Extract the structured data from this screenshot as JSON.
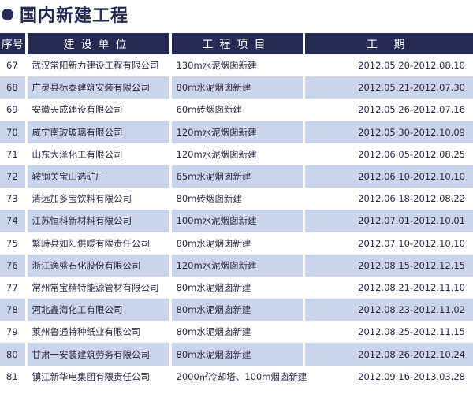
{
  "title": "国内新建工程",
  "colors": {
    "header_bg": "#262a55",
    "alt_row_bg": "#c8d5ea"
  },
  "table": {
    "headers": [
      "序号",
      "建设单位",
      "工程项目",
      "工 期"
    ],
    "rows": [
      [
        "67",
        "武汉常阳新力建设工程有限公司",
        "130m水泥烟囱新建",
        "2012.05.20-2012.08.10"
      ],
      [
        "68",
        "广灵县标泰建筑安装有限公司",
        "80m水泥烟囱新建",
        "2012.05.21-2012.07.30"
      ],
      [
        "69",
        "安徽天成建设有限公司",
        "60m砖烟囱新建",
        "2012.05.26-2012.07.16"
      ],
      [
        "70",
        "咸宁南玻玻璃有限公司",
        "120m水泥烟囱新建",
        "2012.05.30-2012.10.09"
      ],
      [
        "71",
        "山东大泽化工有限公司",
        "120m水泥烟囱新建",
        "2012.06.05-2012.08.25"
      ],
      [
        "72",
        "鞍钢关宝山选矿厂",
        "65m水泥烟囱新建",
        "2012.06.10-2012.10.10"
      ],
      [
        "73",
        "清远加多宝饮料有限公司",
        "80m砖烟囱新建",
        "2012.06.18-2012.08.22"
      ],
      [
        "74",
        "江苏恒科新材料有限公司",
        "100m水泥烟囱新建",
        "2012.07.01-2012.10.01"
      ],
      [
        "75",
        "繁峙县如阳供暖有限责任公司",
        "80m水泥烟囱新建",
        "2012.07.10-2012.10.10"
      ],
      [
        "76",
        "浙江逸盛石化股份有限公司",
        "120m水泥烟囱新建",
        "2012.08.15-2012.12.15"
      ],
      [
        "77",
        "常州常宝精特能源管材有限公司",
        "80m水泥烟囱新建",
        "2012.08.21-2012.11.10"
      ],
      [
        "78",
        "河北鑫海化工有限公司",
        "80m水泥烟囱新建",
        "2012.08.23-2012.11.02"
      ],
      [
        "79",
        "莱州鲁通特种纸业有限公司",
        "80m水泥烟囱新建",
        "2012.08.25-2012.11.15"
      ],
      [
        "80",
        "甘肃一安装建筑劳务有限公司",
        "80m水泥烟囱新建",
        "2012.08.26-2012.10.24"
      ],
      [
        "81",
        "镇江新华电集团有限责任公司",
        "2000㎡冷却塔、100m烟囱新建",
        "2012.09.16-2013.03.28"
      ]
    ]
  }
}
